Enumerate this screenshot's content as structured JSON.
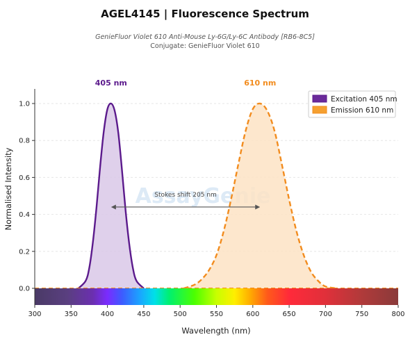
{
  "header": {
    "title": "AGEL4145  |  Fluorescence Spectrum",
    "subtitle": "GenieFluor Violet 610 Anti-Mouse Ly-6G/Ly-6C Antibody [RB6-8C5]",
    "conjugate": "Conjugate: GenieFluor Violet 610"
  },
  "watermark": "AssayGenie",
  "chart_data": {
    "type": "area",
    "xlabel": "Wavelength (nm)",
    "ylabel": "Normalised Intensity",
    "xlim": [
      300,
      800
    ],
    "ylim": [
      0.0,
      1.0
    ],
    "x_ticks": [
      300,
      350,
      400,
      450,
      500,
      550,
      600,
      650,
      700,
      750,
      800
    ],
    "y_ticks": [
      0.0,
      0.2,
      0.4,
      0.6,
      0.8,
      1.0
    ],
    "x_tick_labels": [
      "300",
      "350",
      "400",
      "450",
      "500",
      "550",
      "600",
      "650",
      "700",
      "750",
      "800"
    ],
    "y_tick_labels": [
      "0.0",
      "0.2",
      "0.4",
      "0.6",
      "0.8",
      "1.0"
    ],
    "grid": true,
    "legend_position": "top-right",
    "series": [
      {
        "name": "Excitation  405 nm",
        "peak": 405,
        "peak_label": "405 nm",
        "color": "#5b1a8c",
        "fill": "#d9c8e8",
        "line_style": "solid",
        "x": [
          360,
          370,
          375,
          380,
          385,
          390,
          395,
          400,
          405,
          410,
          415,
          420,
          425,
          430,
          435,
          440,
          450
        ],
        "y": [
          0.0,
          0.04,
          0.11,
          0.25,
          0.44,
          0.66,
          0.85,
          0.97,
          1.0,
          0.96,
          0.84,
          0.64,
          0.42,
          0.24,
          0.11,
          0.04,
          0.0
        ]
      },
      {
        "name": "Emission  610 nm",
        "peak": 610,
        "peak_label": "610 nm",
        "color": "#f28c1e",
        "fill": "#fde3c4",
        "line_style": "dashed",
        "x": [
          505,
          520,
          530,
          540,
          550,
          560,
          570,
          580,
          590,
          600,
          610,
          620,
          630,
          640,
          650,
          660,
          670,
          680,
          690,
          700,
          715
        ],
        "y": [
          0.0,
          0.02,
          0.05,
          0.1,
          0.18,
          0.31,
          0.48,
          0.67,
          0.85,
          0.97,
          1.0,
          0.96,
          0.85,
          0.67,
          0.48,
          0.31,
          0.18,
          0.09,
          0.04,
          0.01,
          0.0
        ]
      }
    ],
    "annotations": [
      {
        "text": "Stokes shift  205 nm",
        "x_start": 405,
        "x_end": 610,
        "y": 0.44
      }
    ]
  }
}
